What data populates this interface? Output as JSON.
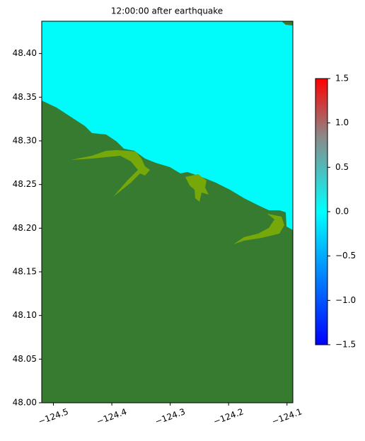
{
  "chart_data": {
    "type": "map",
    "title": "12:00:00 after earthquake",
    "xlim": [
      -124.52,
      -124.09
    ],
    "xticks": [
      {
        "value": -124.5,
        "label": "−124.5"
      },
      {
        "value": -124.4,
        "label": "−124.4"
      },
      {
        "value": -124.3,
        "label": "−124.3"
      },
      {
        "value": -124.2,
        "label": "−124.2"
      },
      {
        "value": -124.1,
        "label": "−124.1"
      }
    ],
    "ylim": [
      48.0,
      48.437
    ],
    "yticks": [
      {
        "value": 48.0,
        "label": "48.00"
      },
      {
        "value": 48.05,
        "label": "48.05"
      },
      {
        "value": 48.1,
        "label": "48.10"
      },
      {
        "value": 48.15,
        "label": "48.15"
      },
      {
        "value": 48.2,
        "label": "48.20"
      },
      {
        "value": 48.25,
        "label": "48.25"
      },
      {
        "value": 48.3,
        "label": "48.30"
      },
      {
        "value": 48.35,
        "label": "48.35"
      },
      {
        "value": 48.4,
        "label": "48.40"
      }
    ],
    "clim": [
      -1.5,
      1.5
    ],
    "cticks": [
      {
        "value": -1.5,
        "label": "−1.5"
      },
      {
        "value": -1.0,
        "label": "−1.0"
      },
      {
        "value": -0.5,
        "label": "−0.5"
      },
      {
        "value": 0.0,
        "label": "0.0"
      },
      {
        "value": 0.5,
        "label": "0.5"
      },
      {
        "value": 1.0,
        "label": "1.0"
      },
      1.5
    ]
  }
}
